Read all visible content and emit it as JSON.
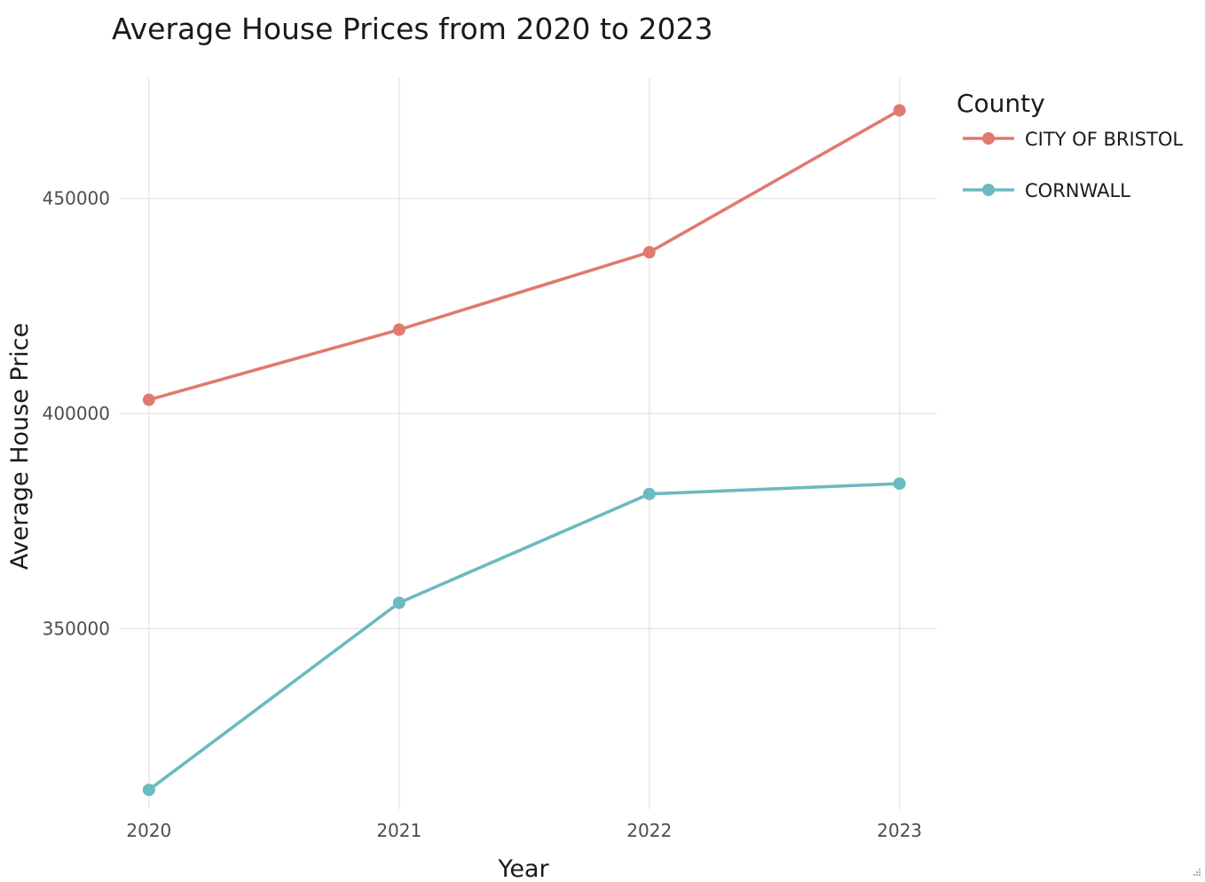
{
  "chart_data": {
    "type": "line",
    "title": "Average House Prices from 2020 to 2023",
    "xlabel": "Year",
    "ylabel": "Average House Price",
    "x": [
      "2020",
      "2021",
      "2022",
      "2023"
    ],
    "x_values": [
      2020,
      2021,
      2022,
      2023
    ],
    "y_ticks": [
      350000,
      400000,
      450000
    ],
    "y_tick_labels": [
      "350000",
      "400000",
      "450000"
    ],
    "ylim": [
      308000,
      478000
    ],
    "xlim": [
      2019.88,
      2023.15
    ],
    "grid": true,
    "legend": {
      "title": "County",
      "position": "right"
    },
    "series": [
      {
        "name": "CITY OF BRISTOL",
        "color": "#E07A6F",
        "values": [
          403200,
          419500,
          437500,
          470500
        ]
      },
      {
        "name": "CORNWALL",
        "color": "#6BBABF",
        "values": [
          312500,
          356000,
          381300,
          383700
        ]
      }
    ]
  }
}
